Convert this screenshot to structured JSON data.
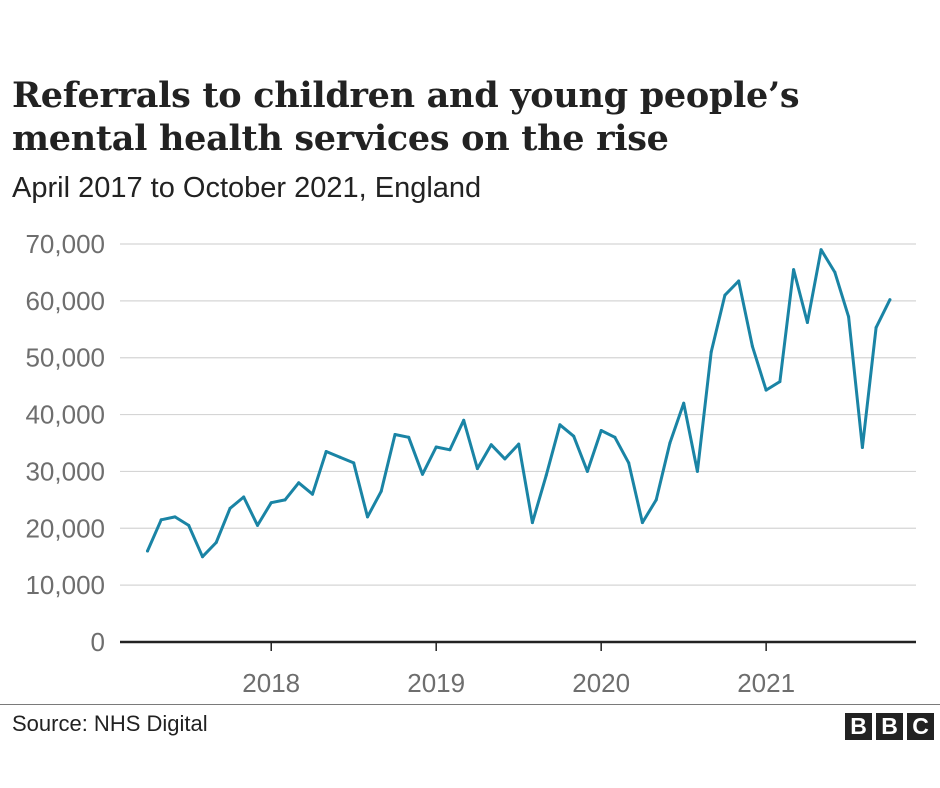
{
  "chart_data": {
    "type": "line",
    "title": "Referrals to children and young people’s mental health services on the rise",
    "subtitle": "April 2017 to October 2021, England",
    "source": "Source: NHS Digital",
    "logo": [
      "B",
      "B",
      "C"
    ],
    "ylim": [
      0,
      70000
    ],
    "y_ticks": [
      0,
      10000,
      20000,
      30000,
      40000,
      50000,
      60000,
      70000
    ],
    "y_tick_labels": [
      "0",
      "10,000",
      "20,000",
      "30,000",
      "40,000",
      "50,000",
      "60,000",
      "70,000"
    ],
    "x_ticks": [
      "2018-01",
      "2019-01",
      "2020-01",
      "2021-01"
    ],
    "x_tick_labels": [
      "2018",
      "2019",
      "2020",
      "2021"
    ],
    "grid": true,
    "colors": {
      "line": "#1a84a5",
      "grid": "#d5d5d5",
      "axis": "#222222"
    },
    "series": [
      {
        "x": [
          "2017-04",
          "2017-05",
          "2017-06",
          "2017-07",
          "2017-08",
          "2017-09",
          "2017-10",
          "2017-11",
          "2017-12",
          "2018-01",
          "2018-02",
          "2018-03",
          "2018-04",
          "2018-05",
          "2018-06",
          "2018-07",
          "2018-08",
          "2018-09",
          "2018-10",
          "2018-11",
          "2018-12",
          "2019-01",
          "2019-02",
          "2019-03",
          "2019-04",
          "2019-05",
          "2019-06",
          "2019-07",
          "2019-08",
          "2019-09",
          "2019-10",
          "2019-11",
          "2019-12",
          "2020-01",
          "2020-02",
          "2020-03",
          "2020-04",
          "2020-05",
          "2020-06",
          "2020-07",
          "2020-08",
          "2020-09",
          "2020-10",
          "2020-11",
          "2020-12",
          "2021-01",
          "2021-02",
          "2021-03",
          "2021-04",
          "2021-05",
          "2021-06",
          "2021-07",
          "2021-08",
          "2021-09",
          "2021-10"
        ],
        "values": [
          16000,
          21500,
          22000,
          20500,
          15000,
          17500,
          23500,
          25500,
          20500,
          24500,
          25000,
          28000,
          26000,
          33500,
          32500,
          31500,
          22000,
          26500,
          36500,
          36000,
          29500,
          34300,
          33800,
          39000,
          30500,
          34700,
          32200,
          34800,
          21000,
          29300,
          38200,
          36200,
          30000,
          37200,
          36000,
          31500,
          21000,
          25000,
          35000,
          42000,
          30000,
          51000,
          61000,
          63500,
          52000,
          44300,
          45800,
          65500,
          56200,
          69000,
          65000,
          57200,
          34200,
          55300,
          60200
        ]
      }
    ]
  }
}
